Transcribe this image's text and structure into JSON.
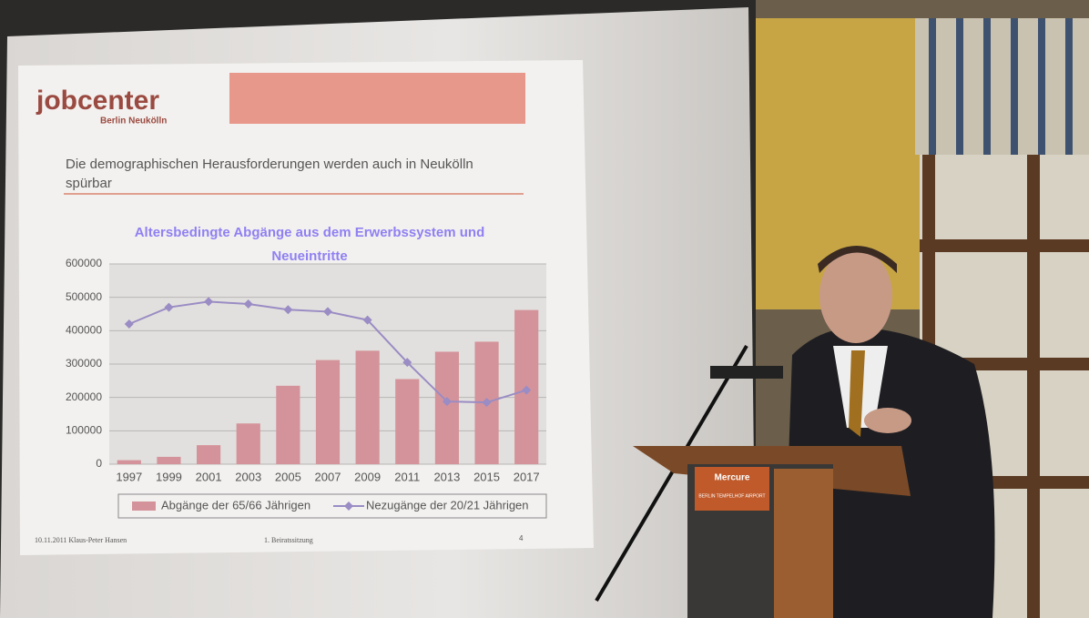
{
  "slide": {
    "logo": "jobcenter",
    "logo_sub": "Berlin Neukölln",
    "heading": "Die demographischen Herausforderungen werden auch in Neukölln spürbar",
    "footer_left": "10.11.2011 Klaus-Peter Hansen",
    "footer_mid": "1. Beiratssitzung",
    "page": "4"
  },
  "podium": {
    "brand": "Mercure",
    "location": "BERLIN TEMPELHOF AIRPORT"
  },
  "chart_data": {
    "type": "bar",
    "title": "Altersbedingte Abgänge aus dem Erwerbssystem und Neueintritte",
    "categories": [
      "1997",
      "1999",
      "2001",
      "2003",
      "2005",
      "2007",
      "2009",
      "2011",
      "2013",
      "2015",
      "2017"
    ],
    "series": [
      {
        "name": "Abgänge der 65/66 Jährigen",
        "type": "bar",
        "color": "#d4939a",
        "values": [
          12000,
          22000,
          57000,
          122000,
          235000,
          312000,
          340000,
          255000,
          337000,
          367000,
          462000
        ]
      },
      {
        "name": "Nezugänge der 20/21 Jährigen",
        "type": "line",
        "color": "#9a8cc4",
        "values": [
          420000,
          470000,
          487000,
          480000,
          463000,
          457000,
          432000,
          305000,
          188000,
          185000,
          222000
        ]
      }
    ],
    "ylim": [
      0,
      600000
    ],
    "yticks": [
      0,
      100000,
      200000,
      300000,
      400000,
      500000,
      600000
    ],
    "grid": true,
    "legend": "bottom"
  }
}
